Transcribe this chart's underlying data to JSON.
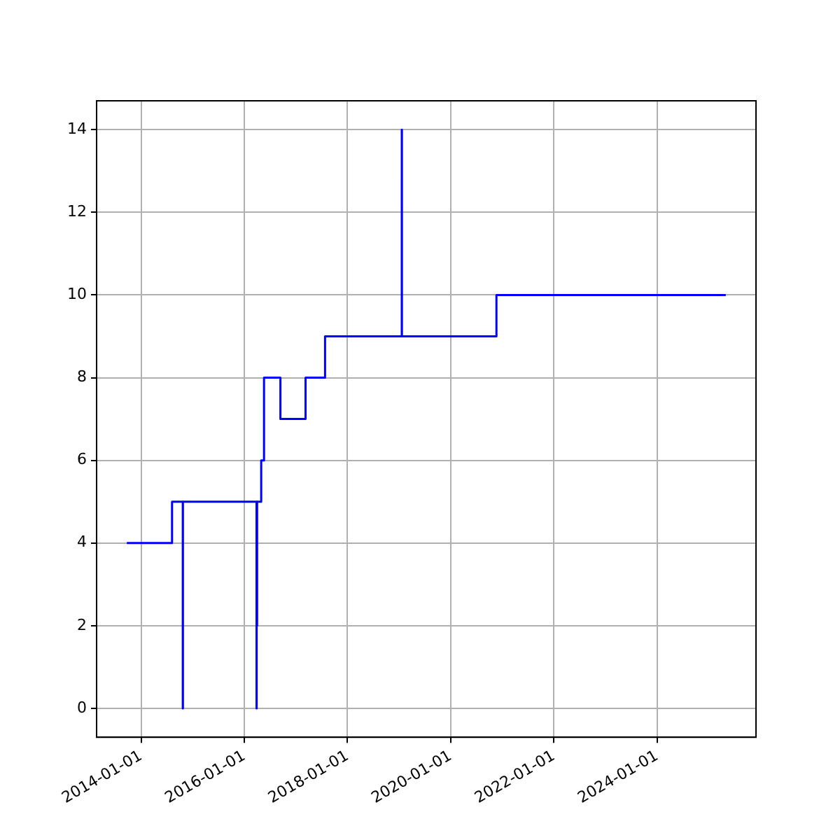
{
  "chart_data": {
    "type": "step",
    "x": [
      "2013-09-22",
      "2014-08-08",
      "2014-10-23",
      "2014-10-24",
      "2016-03-28",
      "2016-03-29",
      "2016-03-31",
      "2016-04-01",
      "2016-04-30",
      "2016-05-20",
      "2016-09-13",
      "2017-03-10",
      "2017-07-26",
      "2019-01-20",
      "2019-01-21",
      "2020-11-20",
      "2025-05-01"
    ],
    "series": [
      {
        "color": "#0000ff",
        "values": [
          4,
          5,
          0,
          5,
          0,
          5,
          2,
          5,
          6,
          8,
          7,
          8,
          9,
          14,
          9,
          10,
          10
        ]
      }
    ],
    "xlim": [
      "2013-02-20",
      "2025-12-01"
    ],
    "xticks": [
      "2014-01-01",
      "2016-01-01",
      "2018-01-01",
      "2020-01-01",
      "2022-01-01",
      "2024-01-01"
    ],
    "ylim": [
      -0.7,
      14.7
    ],
    "yticks": [
      0,
      2,
      4,
      6,
      8,
      10,
      12,
      14
    ],
    "grid": true,
    "marker": "none",
    "line_style": "solid"
  }
}
